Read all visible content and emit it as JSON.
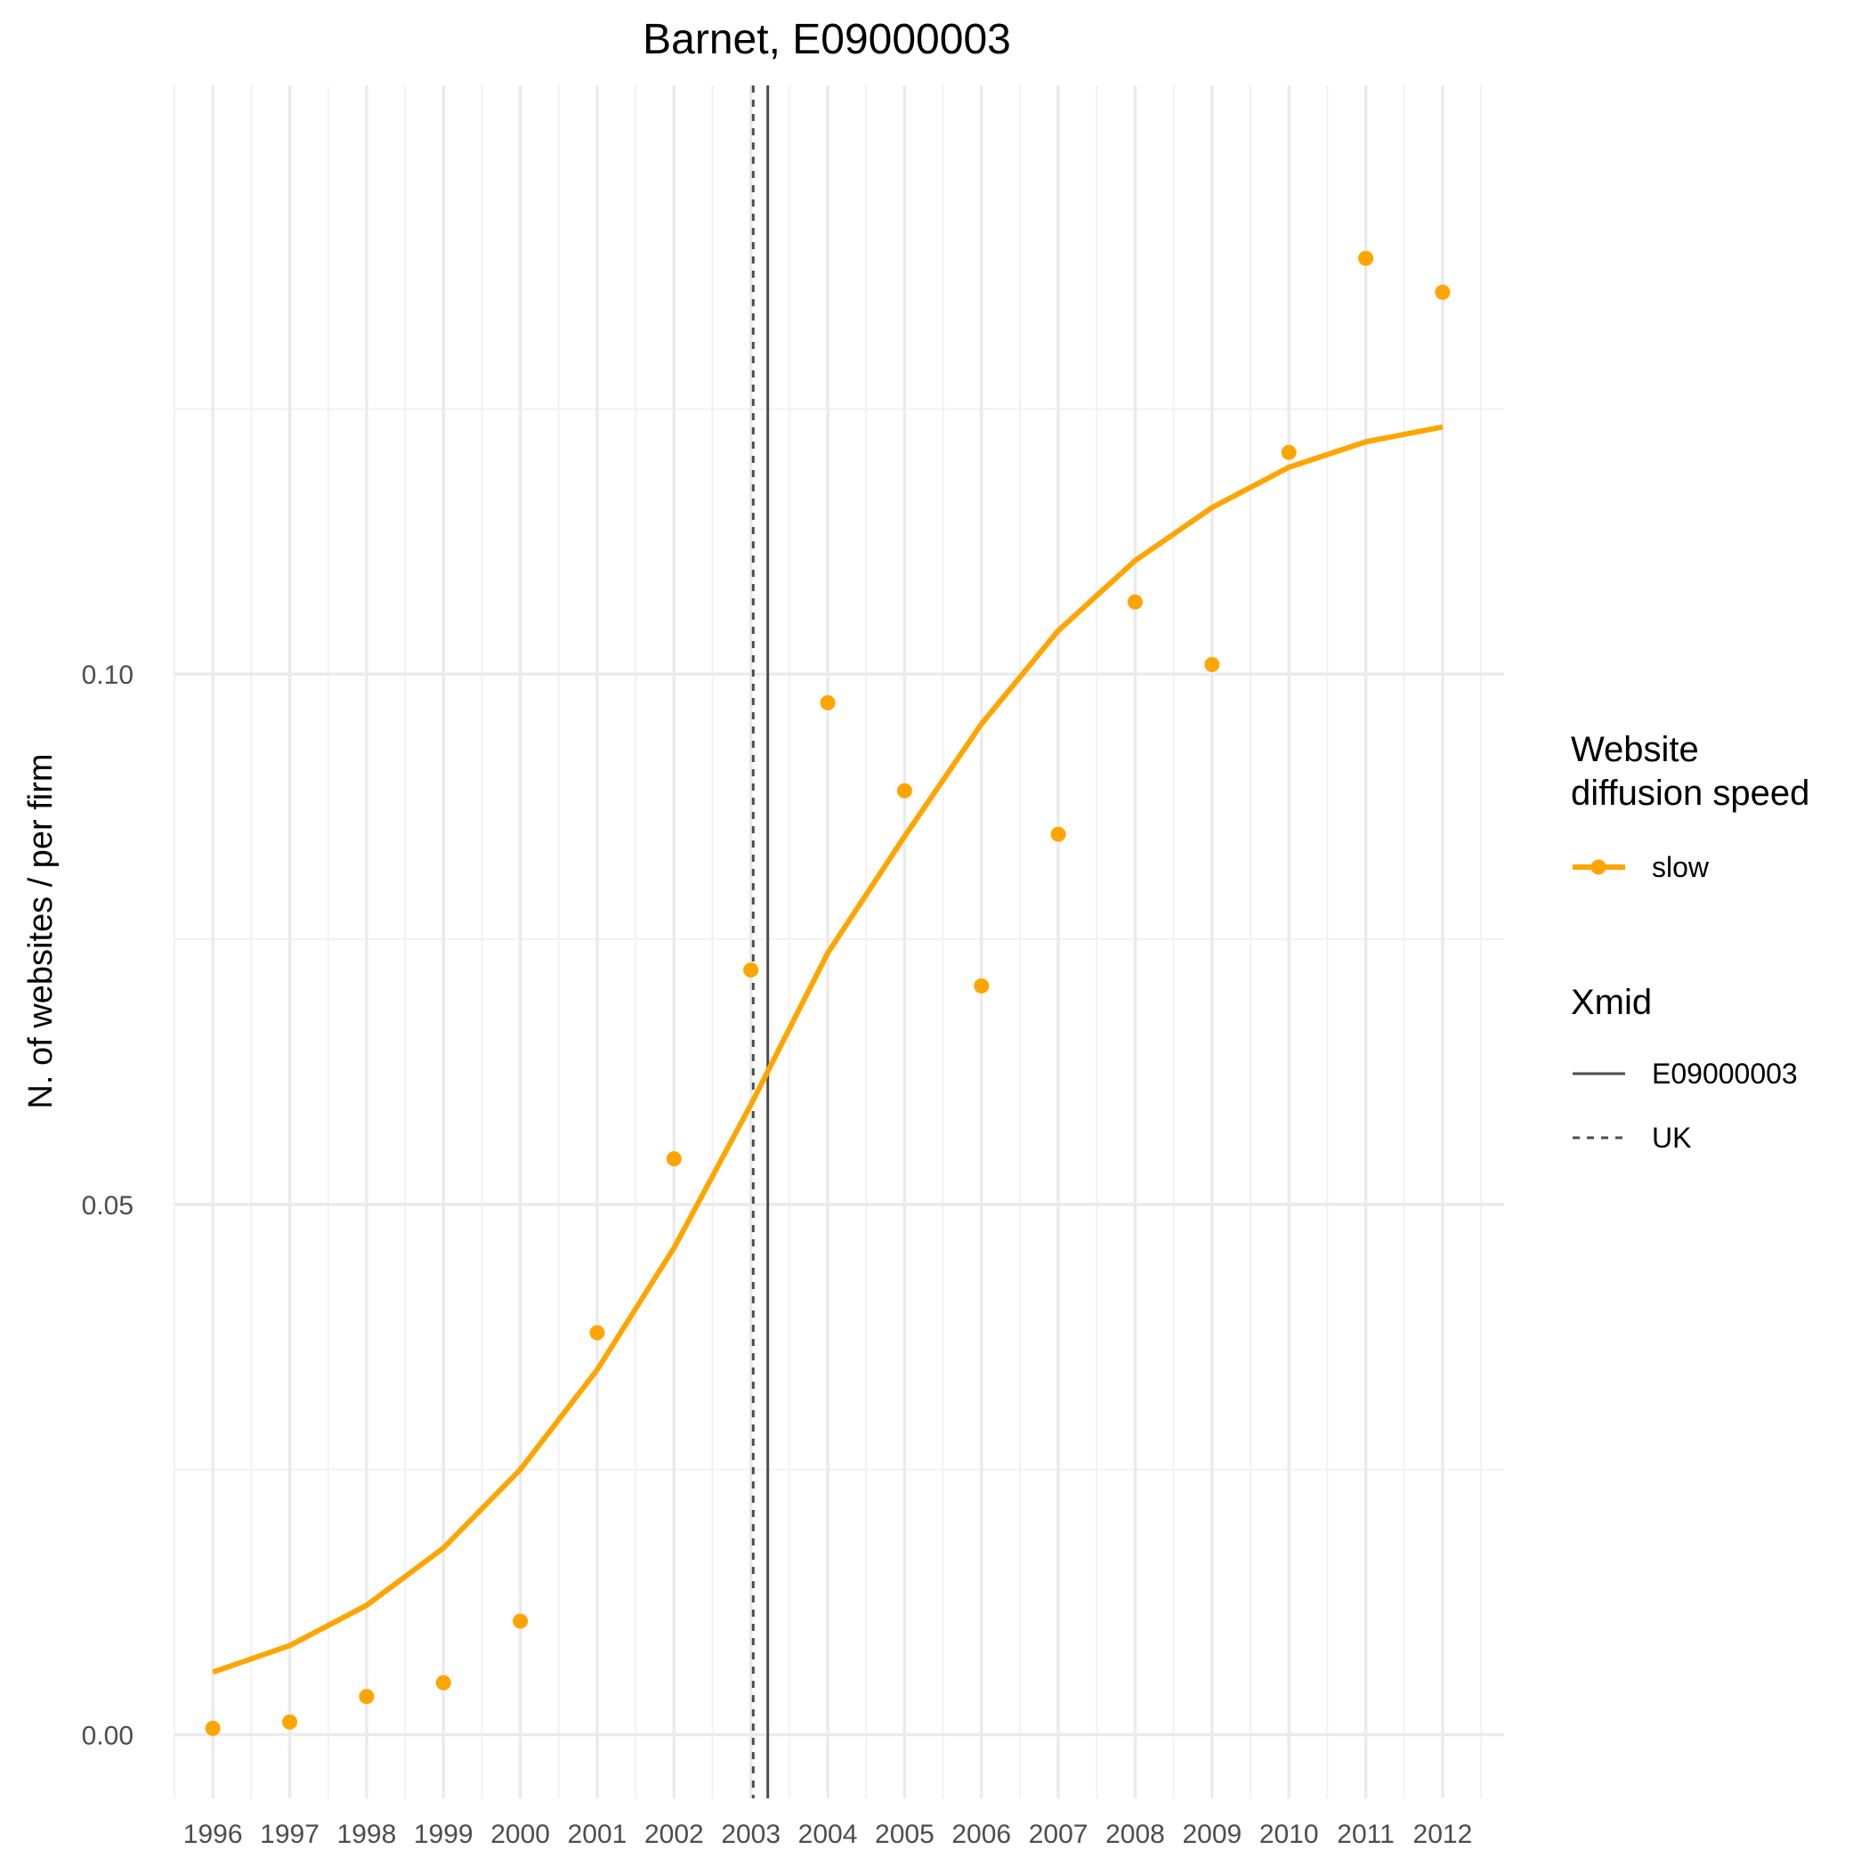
{
  "chart_data": {
    "type": "line",
    "title": "Barnet, E09000003",
    "xlabel": "",
    "ylabel": "N. of websites / per firm",
    "x": [
      1996,
      1997,
      1998,
      1999,
      2000,
      2001,
      2002,
      2003,
      2004,
      2005,
      2006,
      2007,
      2008,
      2009,
      2010,
      2011,
      2012
    ],
    "x_tick_labels": [
      "1996",
      "1997",
      "1998",
      "1999",
      "2000",
      "2001",
      "2002",
      "2003",
      "2004",
      "2005",
      "2006",
      "2007",
      "2008",
      "2009",
      "2010",
      "2011",
      "2012"
    ],
    "y_ticks": [
      0.0,
      0.05,
      0.1
    ],
    "y_tick_labels": [
      "0.00",
      "0.05",
      "0.10"
    ],
    "xlim": [
      1995.5,
      2012.8
    ],
    "ylim": [
      -0.006,
      0.1555
    ],
    "grid": true,
    "legend_position": "right",
    "series": [
      {
        "name": "slow",
        "color": "#FFA500",
        "points": [
          0.0006,
          0.0012,
          0.0036,
          0.0049,
          0.0107,
          0.0379,
          0.0543,
          0.0721,
          0.0973,
          0.089,
          0.0706,
          0.0849,
          0.1068,
          0.1009,
          0.1209,
          0.1392,
          0.136
        ],
        "fit": [
          0.0059,
          0.0084,
          0.0122,
          0.0176,
          0.025,
          0.0344,
          0.0459,
          0.0594,
          0.0737,
          0.0847,
          0.0953,
          0.1041,
          0.1107,
          0.1157,
          0.1195,
          0.1219,
          0.1233
        ]
      }
    ],
    "reference_lines": [
      {
        "name": "E09000003",
        "x": 2003.22,
        "color": "#4d4d4d",
        "dash": "solid"
      },
      {
        "name": "UK",
        "x": 2003.03,
        "color": "#4d4d4d",
        "dash": "dashed"
      }
    ],
    "legends": [
      {
        "title": "Website\ndiffusion speed",
        "items": [
          {
            "label": "slow",
            "color": "#FFA500",
            "kind": "line-point"
          }
        ]
      },
      {
        "title": "Xmid",
        "items": [
          {
            "label": "E09000003",
            "kind": "solid"
          },
          {
            "label": "UK",
            "kind": "dashed"
          }
        ]
      }
    ]
  }
}
